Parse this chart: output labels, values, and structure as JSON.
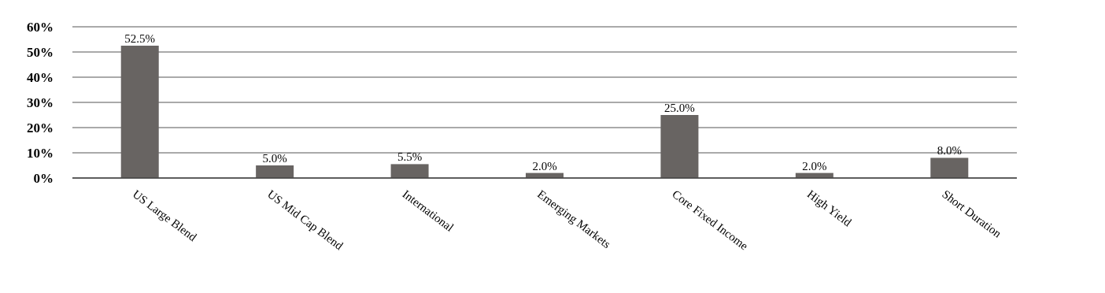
{
  "chart_data": {
    "type": "bar",
    "categories": [
      "US Large Blend",
      "US Mid Cap Blend",
      "International",
      "Emerging Markets",
      "Core Fixed Income",
      "High Yield",
      "Short Duration"
    ],
    "values": [
      52.5,
      5.0,
      5.5,
      2.0,
      25.0,
      2.0,
      8.0
    ],
    "value_labels": [
      "52.5%",
      "5.0%",
      "5.5%",
      "2.0%",
      "25.0%",
      "2.0%",
      "8.0%"
    ],
    "color": "#686462",
    "ylim": [
      0,
      60
    ],
    "yticks": [
      {
        "value": 0,
        "label": "0%"
      },
      {
        "value": 10,
        "label": "10%"
      },
      {
        "value": 20,
        "label": "20%"
      },
      {
        "value": 30,
        "label": "30%"
      },
      {
        "value": 40,
        "label": "40%"
      },
      {
        "value": 50,
        "label": "50%"
      },
      {
        "value": 60,
        "label": "60%"
      }
    ],
    "grid": "y"
  }
}
